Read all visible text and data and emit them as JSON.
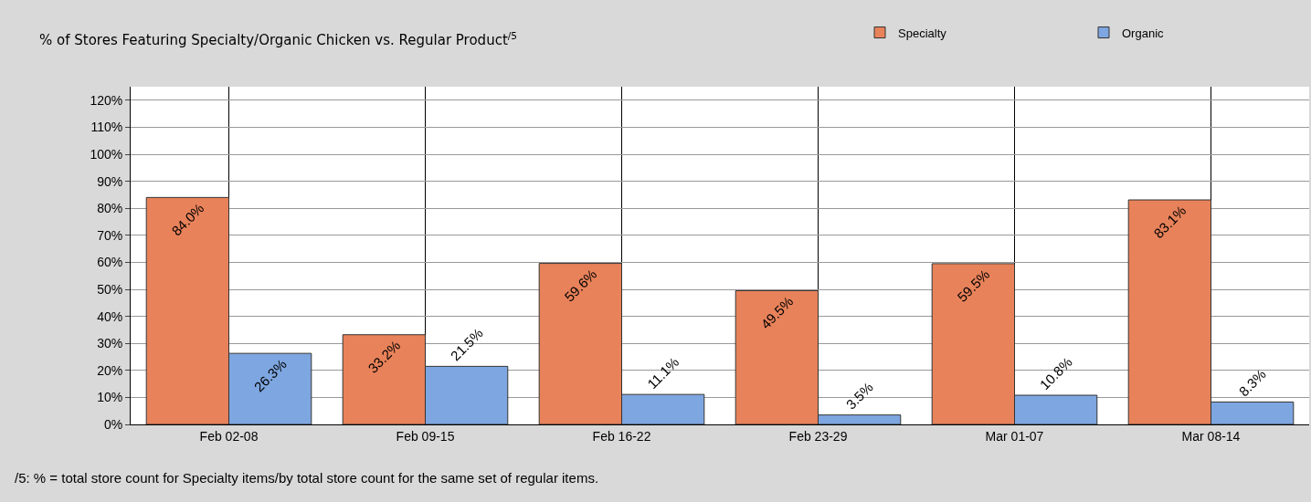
{
  "chart_data": {
    "type": "bar",
    "title": "% of Stores Featuring Specialty/Organic Chicken vs. Regular Product$^{/5}$",
    "categories": [
      "Feb 02-08",
      "Feb 09-15",
      "Feb 16-22",
      "Feb 23-29",
      "Mar 01-07",
      "Mar 08-14"
    ],
    "series": [
      {
        "name": "Specialty",
        "color": "#e8825a",
        "values": [
          84.0,
          33.2,
          59.6,
          49.5,
          59.5,
          83.1
        ],
        "value_labels": [
          "84.0%",
          "33.2%",
          "59.6%",
          "49.5%",
          "59.5%",
          "83.1%"
        ]
      },
      {
        "name": "Organic",
        "color": "#7ea6e0",
        "values": [
          26.3,
          21.5,
          11.1,
          3.5,
          10.8,
          8.3
        ],
        "value_labels": [
          "26.3%",
          "21.5%",
          "11.1%",
          "3.5%",
          "10.8%",
          "8.3%"
        ]
      }
    ],
    "ylim": [
      0,
      125
    ],
    "yticks": [
      {
        "value": 0,
        "label": "0%"
      },
      {
        "value": 10,
        "label": "10%"
      },
      {
        "value": 20,
        "label": "20%"
      },
      {
        "value": 30,
        "label": "30%"
      },
      {
        "value": 40,
        "label": "40%"
      },
      {
        "value": 50,
        "label": "50%"
      },
      {
        "value": 60,
        "label": "60%"
      },
      {
        "value": 70,
        "label": "70%"
      },
      {
        "value": 80,
        "label": "80%"
      },
      {
        "value": 90,
        "label": "90%"
      },
      {
        "value": 100,
        "label": "100%"
      },
      {
        "value": 110,
        "label": "110%"
      },
      {
        "value": 120,
        "label": "120%"
      }
    ],
    "grid": true,
    "legend": "top right",
    "annotations": [
      "/5: % = total store count for Specialty items/by total store count for the same set of regular items."
    ]
  }
}
